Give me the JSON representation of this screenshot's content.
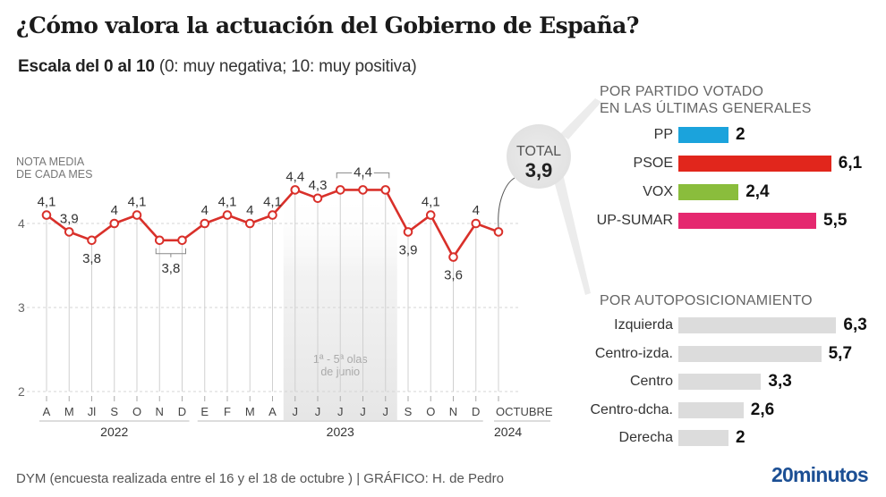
{
  "title": "¿Cómo valora la actuación del Gobierno de España?",
  "subtitle": {
    "bold": "Escala del 0 al 10",
    "normal": " (0: muy negativa; 10: muy positiva)"
  },
  "chart_data": [
    {
      "type": "line",
      "title": "NOTA MEDIA DE CADA MES",
      "ylabel_lines": [
        "NOTA MEDIA",
        "DE CADA MES"
      ],
      "ylim": [
        2,
        4.5
      ],
      "yticks": [
        2,
        3,
        4
      ],
      "grid": true,
      "color": "#d9302a",
      "categories": [
        "A",
        "M",
        "Jl",
        "S",
        "O",
        "N",
        "D",
        "E",
        "F",
        "M",
        "A",
        "J",
        "J",
        "J",
        "J",
        "J",
        "S",
        "O",
        "N",
        "D",
        "OCTUBRE"
      ],
      "values": [
        4.1,
        3.9,
        3.8,
        4.0,
        4.1,
        3.8,
        3.8,
        4.0,
        4.1,
        4.0,
        4.1,
        4.4,
        4.3,
        4.4,
        4.4,
        4.4,
        3.9,
        4.1,
        3.6,
        4.0,
        3.9
      ],
      "point_labels": [
        {
          "index": 0,
          "text": "4,1",
          "pos": "above"
        },
        {
          "index": 1,
          "text": "3,9",
          "pos": "above"
        },
        {
          "index": 2,
          "text": "3,8",
          "pos": "below"
        },
        {
          "index": 3,
          "text": "4",
          "pos": "above"
        },
        {
          "index": 4,
          "text": "4,1",
          "pos": "above"
        },
        {
          "index": 7,
          "text": "4",
          "pos": "above"
        },
        {
          "index": 8,
          "text": "4,1",
          "pos": "above"
        },
        {
          "index": 9,
          "text": "4",
          "pos": "above"
        },
        {
          "index": 10,
          "text": "4,1",
          "pos": "above"
        },
        {
          "index": 11,
          "text": "4,4",
          "pos": "above"
        },
        {
          "index": 12,
          "text": "4,3",
          "pos": "above"
        },
        {
          "index": 16,
          "text": "3,9",
          "pos": "below"
        },
        {
          "index": 17,
          "text": "4,1",
          "pos": "above"
        },
        {
          "index": 18,
          "text": "3,6",
          "pos": "below"
        },
        {
          "index": 19,
          "text": "4",
          "pos": "above"
        }
      ],
      "group_labels": [
        {
          "from": 5,
          "to": 6,
          "text": "3,8",
          "pos": "below"
        },
        {
          "from": 13,
          "to": 15,
          "text": "4,4",
          "pos": "above"
        }
      ],
      "years": [
        {
          "from": 0,
          "to": 6,
          "label": "2022"
        },
        {
          "from": 7,
          "to": 19,
          "label": "2023"
        },
        {
          "from": 20,
          "to": 20,
          "label": "2024"
        }
      ],
      "shaded_range": {
        "from": 11,
        "to": 15,
        "note_lines": [
          "1ª - 5ª olas",
          "de junio"
        ]
      },
      "total": {
        "label": "TOTAL",
        "value": "3,9"
      }
    },
    {
      "type": "bar",
      "title": "POR PARTIDO VOTADO EN LAS ÚLTIMAS GENERALES",
      "categories": [
        "PP",
        "PSOE",
        "VOX",
        "UP-SUMAR"
      ],
      "values": [
        2,
        6.1,
        2.4,
        5.5
      ],
      "value_labels": [
        "2",
        "6,1",
        "2,4",
        "5,5"
      ],
      "colors": [
        "#1ba3dc",
        "#e1261c",
        "#8abd3c",
        "#e5286f"
      ]
    },
    {
      "type": "bar",
      "title": "POR AUTOPOSICIONAMIENTO",
      "categories": [
        "Izquierda",
        "Centro-izda.",
        "Centro",
        "Centro-dcha.",
        "Derecha"
      ],
      "values": [
        6.3,
        5.7,
        3.3,
        2.6,
        2
      ],
      "value_labels": [
        "6,3",
        "5,7",
        "3,3",
        "2,6",
        "2"
      ],
      "colors": [
        "#dcdcdc",
        "#dcdcdc",
        "#dcdcdc",
        "#dcdcdc",
        "#dcdcdc"
      ]
    }
  ],
  "panels": {
    "party_title_lines": [
      "POR PARTIDO VOTADO",
      "EN LAS ÚLTIMAS GENERALES"
    ],
    "position_title": "POR AUTOPOSICIONAMIENTO"
  },
  "footer": {
    "source": "DYM (encuesta realizada entre el 16 y el 18 de octubre )  |  GRÁFICO: H. de Pedro",
    "logo": "20minutos"
  }
}
